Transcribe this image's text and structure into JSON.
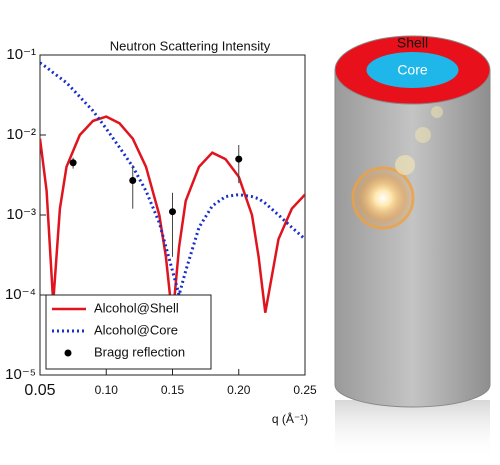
{
  "chart_data": {
    "type": "line",
    "title": "Neutron Scattering Intensity",
    "x_label": "q (Å⁻¹)",
    "x": [
      0.05,
      0.055,
      0.06,
      0.065,
      0.07,
      0.08,
      0.09,
      0.1,
      0.11,
      0.12,
      0.13,
      0.14,
      0.145,
      0.15,
      0.155,
      0.16,
      0.17,
      0.18,
      0.19,
      0.2,
      0.21,
      0.215,
      0.22,
      0.23,
      0.24,
      0.25
    ],
    "series": [
      {
        "name": "Alcohol@Shell",
        "color": "#e0141e",
        "style": "solid",
        "values": [
          0.009,
          0.002,
          8e-05,
          0.0012,
          0.004,
          0.01,
          0.015,
          0.017,
          0.014,
          0.009,
          0.004,
          0.001,
          0.0003,
          5e-05,
          0.0004,
          0.0015,
          0.004,
          0.006,
          0.005,
          0.003,
          0.001,
          0.0003,
          6e-05,
          0.0005,
          0.0012,
          0.0018
        ]
      },
      {
        "name": "Alcohol@Core",
        "color": "#1a2fc8",
        "style": "dotted",
        "values": [
          0.08,
          0.07,
          0.06,
          0.052,
          0.045,
          0.03,
          0.02,
          0.012,
          0.007,
          0.004,
          0.002,
          0.0008,
          0.0004,
          0.0002,
          0.0001,
          0.0002,
          0.0007,
          0.0013,
          0.0017,
          0.0018,
          0.0017,
          0.0016,
          0.0014,
          0.001,
          0.0007,
          0.0005
        ]
      },
      {
        "name": "Bragg reflection",
        "color": "#000000",
        "style": "points",
        "x": [
          0.075,
          0.12,
          0.15,
          0.2
        ],
        "values": [
          0.0045,
          0.0027,
          0.0011,
          0.005
        ],
        "errors": [
          0.0007,
          0.0015,
          0.0008,
          0.0025
        ]
      }
    ],
    "xlim": [
      0.05,
      0.25
    ],
    "xticks": [
      0.05,
      {
        "value": 0.1,
        "label": "0.10"
      },
      0.15,
      {
        "value": 0.2,
        "label": "0.20"
      },
      0.25
    ],
    "ylim": [
      1e-05,
      0.1
    ],
    "log_y": true,
    "yticks": [
      {
        "value": 1e-05,
        "label": "10⁻⁵"
      },
      {
        "value": 0.0001,
        "label": "10⁻⁴"
      },
      {
        "value": 0.001,
        "label": "10⁻³"
      },
      {
        "value": 0.01,
        "label": "10⁻²"
      },
      {
        "value": 0.1,
        "label": "10⁻¹"
      }
    ],
    "legend": "lower left"
  },
  "diagram": {
    "shell_label": "Shell",
    "core_label": "Core"
  }
}
